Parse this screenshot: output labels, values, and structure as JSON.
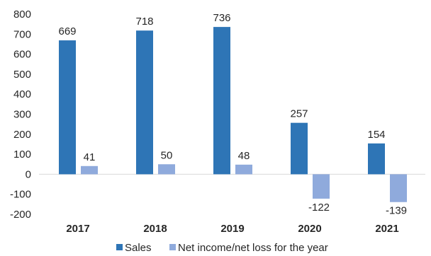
{
  "chart_data": {
    "type": "bar",
    "categories": [
      "2017",
      "2018",
      "2019",
      "2020",
      "2021"
    ],
    "series": [
      {
        "name": "Sales",
        "values": [
          669,
          718,
          736,
          257,
          154
        ],
        "color": "#2e75b6"
      },
      {
        "name": "Net income/net loss for the year",
        "values": [
          41,
          50,
          48,
          -122,
          -139
        ],
        "color": "#8faadc"
      }
    ],
    "ylim": [
      -200,
      800
    ],
    "yticks": [
      "-200",
      "-100",
      "0",
      "100",
      "200",
      "300",
      "400",
      "500",
      "600",
      "700",
      "800"
    ],
    "grid": false,
    "legend_position": "bottom",
    "axis_color": "#d9d9d9"
  }
}
